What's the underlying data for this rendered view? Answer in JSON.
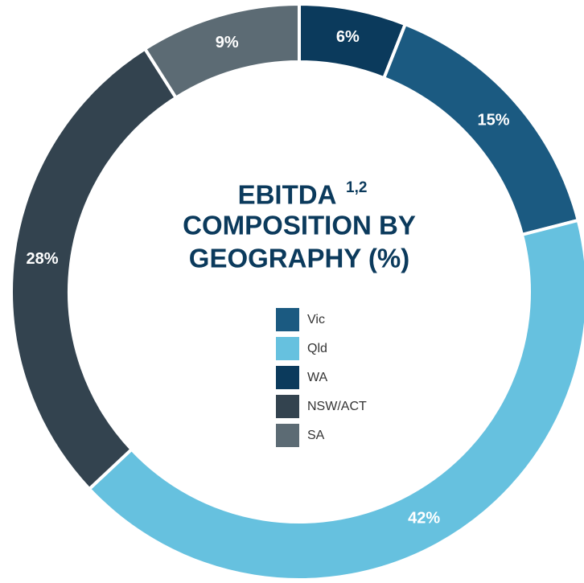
{
  "chart_data": {
    "type": "donut",
    "title": [
      "EBITDA",
      "COMPOSITION BY",
      "GEOGRAPHY (%)"
    ],
    "title_superscript": "1,2",
    "categories": [
      "WA",
      "Vic",
      "Qld",
      "NSW/ACT",
      "SA"
    ],
    "values": [
      6,
      15,
      42,
      28,
      9
    ],
    "value_labels": [
      "6%",
      "15%",
      "42%",
      "28%",
      "9%"
    ],
    "colors": [
      "#0b3a5c",
      "#1b5a81",
      "#66c1df",
      "#33434f",
      "#5c6b74"
    ],
    "legend": [
      "Vic",
      "Qld",
      "WA",
      "NSW/ACT",
      "SA"
    ]
  }
}
